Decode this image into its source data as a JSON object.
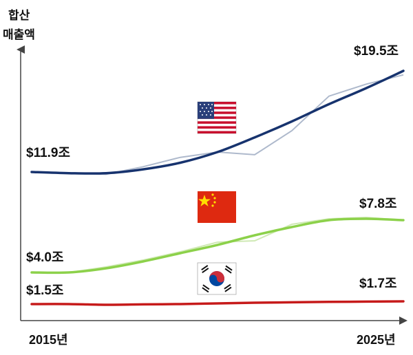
{
  "chart_data": {
    "type": "line",
    "ylabel_lines": [
      "합산",
      "매출액"
    ],
    "x_start_label": "2015년",
    "x_end_label": "2025년",
    "x": [
      2015,
      2016,
      2017,
      2018,
      2019,
      2020,
      2021,
      2022,
      2023,
      2024,
      2025
    ],
    "series": [
      {
        "key": "us",
        "color": "#17336e",
        "raw_color": "#aeb9cc",
        "flag_icon": "us-flag-icon",
        "start_label": "$11.9조",
        "end_label": "$19.5조",
        "values": [
          11.9,
          11.8,
          11.8,
          12.1,
          12.6,
          13.4,
          14.5,
          15.7,
          17.0,
          18.2,
          19.5
        ],
        "raw_values": [
          11.9,
          11.8,
          11.7,
          12.3,
          13.0,
          13.4,
          13.2,
          15.0,
          17.6,
          18.5,
          19.2
        ]
      },
      {
        "key": "cn",
        "color": "#8cd14a",
        "raw_color": "#cfe9b4",
        "flag_icon": "china-flag-icon",
        "start_label": "$4.0조",
        "end_label": "$7.8조",
        "values": [
          4.0,
          4.0,
          4.3,
          4.8,
          5.4,
          6.0,
          6.7,
          7.3,
          7.8,
          7.9,
          7.8
        ],
        "raw_values": [
          4.0,
          4.0,
          4.4,
          4.9,
          5.5,
          6.2,
          6.3,
          7.5,
          7.9,
          8.0,
          7.8
        ]
      },
      {
        "key": "kr",
        "color": "#c61a1a",
        "raw_color": "#e79a9a",
        "flag_icon": "korea-flag-icon",
        "start_label": "$1.5조",
        "end_label": "$1.7조",
        "values": [
          1.5,
          1.5,
          1.45,
          1.48,
          1.5,
          1.55,
          1.6,
          1.63,
          1.66,
          1.68,
          1.7
        ],
        "raw_values": [
          1.5,
          1.5,
          1.45,
          1.48,
          1.5,
          1.55,
          1.6,
          1.63,
          1.66,
          1.68,
          1.7
        ]
      }
    ]
  }
}
